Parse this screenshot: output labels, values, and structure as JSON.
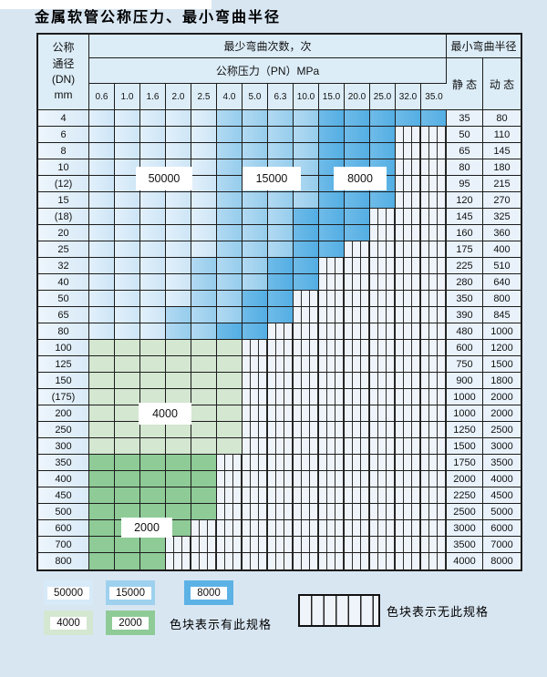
{
  "title": "金属软管公称压力、最小弯曲半径",
  "table": {
    "corner": [
      "公称",
      "通径",
      "(DN)",
      "mm"
    ],
    "bend_cycles_header": "最少弯曲次数，次",
    "pressure_header": "公称压力（PN）MPa",
    "radius_header": "最小弯曲半径",
    "static_label": "静 态",
    "dynamic_label": "动 态",
    "pressures": [
      "0.6",
      "1.0",
      "1.6",
      "2.0",
      "2.5",
      "4.0",
      "5.0",
      "6.3",
      "10.0",
      "15.0",
      "20.0",
      "25.0",
      "32.0",
      "35.0"
    ],
    "zone_legend_note": "cells: L=50000 light blue, M=15000 medium blue, D=8000 dark blue, 4=4000 light green, 2=2000 medium green, H=no-spec hatched",
    "rows": [
      {
        "dn": "4",
        "cells": "LLLLLMMMMDDDDD",
        "static": "35",
        "dynamic": "80"
      },
      {
        "dn": "6",
        "cells": "LLLLLMMMMDDDHH",
        "static": "50",
        "dynamic": "110"
      },
      {
        "dn": "8",
        "cells": "LLLLLMMMMDDDHH",
        "static": "65",
        "dynamic": "145"
      },
      {
        "dn": "10",
        "cells": "LLLLLMMMMDDDHH",
        "static": "80",
        "dynamic": "180"
      },
      {
        "dn": "(12)",
        "cells": "LLLLLMMMMDDDHH",
        "static": "95",
        "dynamic": "215"
      },
      {
        "dn": "15",
        "cells": "LLLLLMMMMDDDHH",
        "static": "120",
        "dynamic": "270"
      },
      {
        "dn": "(18)",
        "cells": "LLLLLMMMDDDHHH",
        "static": "145",
        "dynamic": "325"
      },
      {
        "dn": "20",
        "cells": "LLLLLMMMDDDHHH",
        "static": "160",
        "dynamic": "360"
      },
      {
        "dn": "25",
        "cells": "LLLLLMMMDDHHHH",
        "static": "175",
        "dynamic": "400"
      },
      {
        "dn": "32",
        "cells": "LLLLMMMDDHHHHH",
        "static": "225",
        "dynamic": "510"
      },
      {
        "dn": "40",
        "cells": "LLLLMMMDDHHHHH",
        "static": "280",
        "dynamic": "640"
      },
      {
        "dn": "50",
        "cells": "LLLLMMDDHHHHHH",
        "static": "350",
        "dynamic": "800"
      },
      {
        "dn": "65",
        "cells": "LLLMMMDDHHHHHH",
        "static": "390",
        "dynamic": "845"
      },
      {
        "dn": "80",
        "cells": "LLLMMDDHHHHHHH",
        "static": "480",
        "dynamic": "1000"
      },
      {
        "dn": "100",
        "cells": "444444HHHHHHHH",
        "static": "600",
        "dynamic": "1200"
      },
      {
        "dn": "125",
        "cells": "444444HHHHHHHH",
        "static": "750",
        "dynamic": "1500"
      },
      {
        "dn": "150",
        "cells": "444444HHHHHHHH",
        "static": "900",
        "dynamic": "1800"
      },
      {
        "dn": "(175)",
        "cells": "444444HHHHHHHH",
        "static": "1000",
        "dynamic": "2000"
      },
      {
        "dn": "200",
        "cells": "444444HHHHHHHH",
        "static": "1000",
        "dynamic": "2000"
      },
      {
        "dn": "250",
        "cells": "444444HHHHHHHH",
        "static": "1250",
        "dynamic": "2500"
      },
      {
        "dn": "300",
        "cells": "444444HHHHHHHH",
        "static": "1500",
        "dynamic": "3000"
      },
      {
        "dn": "350",
        "cells": "22222HHHHHHHHH",
        "static": "1750",
        "dynamic": "3500"
      },
      {
        "dn": "400",
        "cells": "22222HHHHHHHHH",
        "static": "2000",
        "dynamic": "4000"
      },
      {
        "dn": "450",
        "cells": "22222HHHHHHHHH",
        "static": "2250",
        "dynamic": "4500"
      },
      {
        "dn": "500",
        "cells": "22222HHHHHHHHH",
        "static": "2500",
        "dynamic": "5000"
      },
      {
        "dn": "600",
        "cells": "2222HHHHHHHHHH",
        "static": "3000",
        "dynamic": "6000"
      },
      {
        "dn": "700",
        "cells": "222HHHHHHHHHHH",
        "static": "3500",
        "dynamic": "7000"
      },
      {
        "dn": "800",
        "cells": "222HHHHHHHHHHH",
        "static": "4000",
        "dynamic": "8000"
      }
    ]
  },
  "overlay_labels": [
    {
      "id": "label-50000",
      "text": "50000"
    },
    {
      "id": "label-15000",
      "text": "15000"
    },
    {
      "id": "label-8000",
      "text": "8000"
    },
    {
      "id": "label-4000",
      "text": "4000"
    },
    {
      "id": "label-2000",
      "text": "2000"
    }
  ],
  "legend": {
    "spec_items": [
      {
        "id": "legend-50000",
        "label": "50000",
        "color": "#d6eaf8"
      },
      {
        "id": "legend-15000",
        "label": "15000",
        "color": "#9ed1ee"
      },
      {
        "id": "legend-8000",
        "label": "8000",
        "color": "#5cb2e5"
      },
      {
        "id": "legend-4000",
        "label": "4000",
        "color": "#d4e7d1"
      },
      {
        "id": "legend-2000",
        "label": "2000",
        "color": "#8ecb97"
      }
    ],
    "has_spec_text": "色块表示有此规格",
    "no_spec_text": "色块表示无此规格"
  },
  "colors": {
    "blue_50000_from": "#e2f0fb",
    "blue_50000_to": "#cde5f6",
    "blue_15000_from": "#b2d9f2",
    "blue_15000_to": "#95cdec",
    "blue_8000_from": "#6fbbe8",
    "blue_8000_to": "#53aee3",
    "green_4000": "#d4e7d1",
    "green_2000": "#8ecb97",
    "hatch_bg": "#eef4fa",
    "grid_line": "#1c1c1c",
    "page_bg": "#d8e6f2"
  }
}
